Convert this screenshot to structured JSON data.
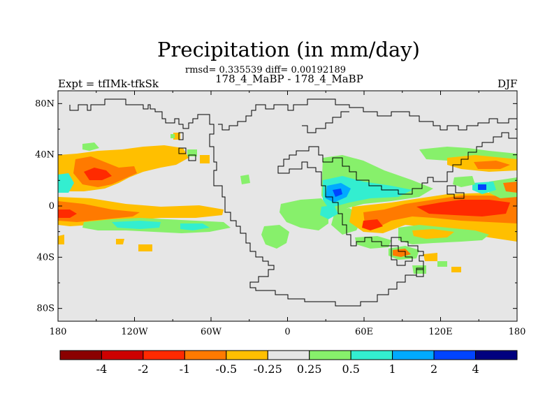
{
  "figure": {
    "title": "Precipitation (in mm/day)",
    "stats": "rmsd= 0.335539 diff= 0.00192189",
    "subtitle": "178_4_MaBP - 178_4_MaBP",
    "left_label": "Expt = tfIMk-tfkSk",
    "right_label": "DJF"
  },
  "map": {
    "lat_range": [
      -90,
      90
    ],
    "lon_range": [
      -180,
      180
    ],
    "lat_ticks": [
      {
        "value": 80,
        "label": "80N"
      },
      {
        "value": 40,
        "label": "40N"
      },
      {
        "value": 0,
        "label": "0"
      },
      {
        "value": -40,
        "label": "40S"
      },
      {
        "value": -80,
        "label": "80S"
      }
    ],
    "lon_ticks": [
      {
        "value": -180,
        "label": "180"
      },
      {
        "value": -120,
        "label": "120W"
      },
      {
        "value": -60,
        "label": "60W"
      },
      {
        "value": 0,
        "label": "0"
      },
      {
        "value": 60,
        "label": "60E"
      },
      {
        "value": 120,
        "label": "120E"
      },
      {
        "value": 180,
        "label": "180"
      }
    ],
    "background_color": "#e6e6e6"
  },
  "colorbar": {
    "colors": [
      "#8b0000",
      "#cd0000",
      "#ff2a00",
      "#ff7a00",
      "#ffbf00",
      "#e6e6e6",
      "#87f06b",
      "#33eed0",
      "#00aaff",
      "#0044ff",
      "#00007f"
    ],
    "labels": [
      "-4",
      "-2",
      "-1",
      "-0.5",
      "-0.25",
      "0.25",
      "0.5",
      "1",
      "2",
      "4"
    ]
  }
}
